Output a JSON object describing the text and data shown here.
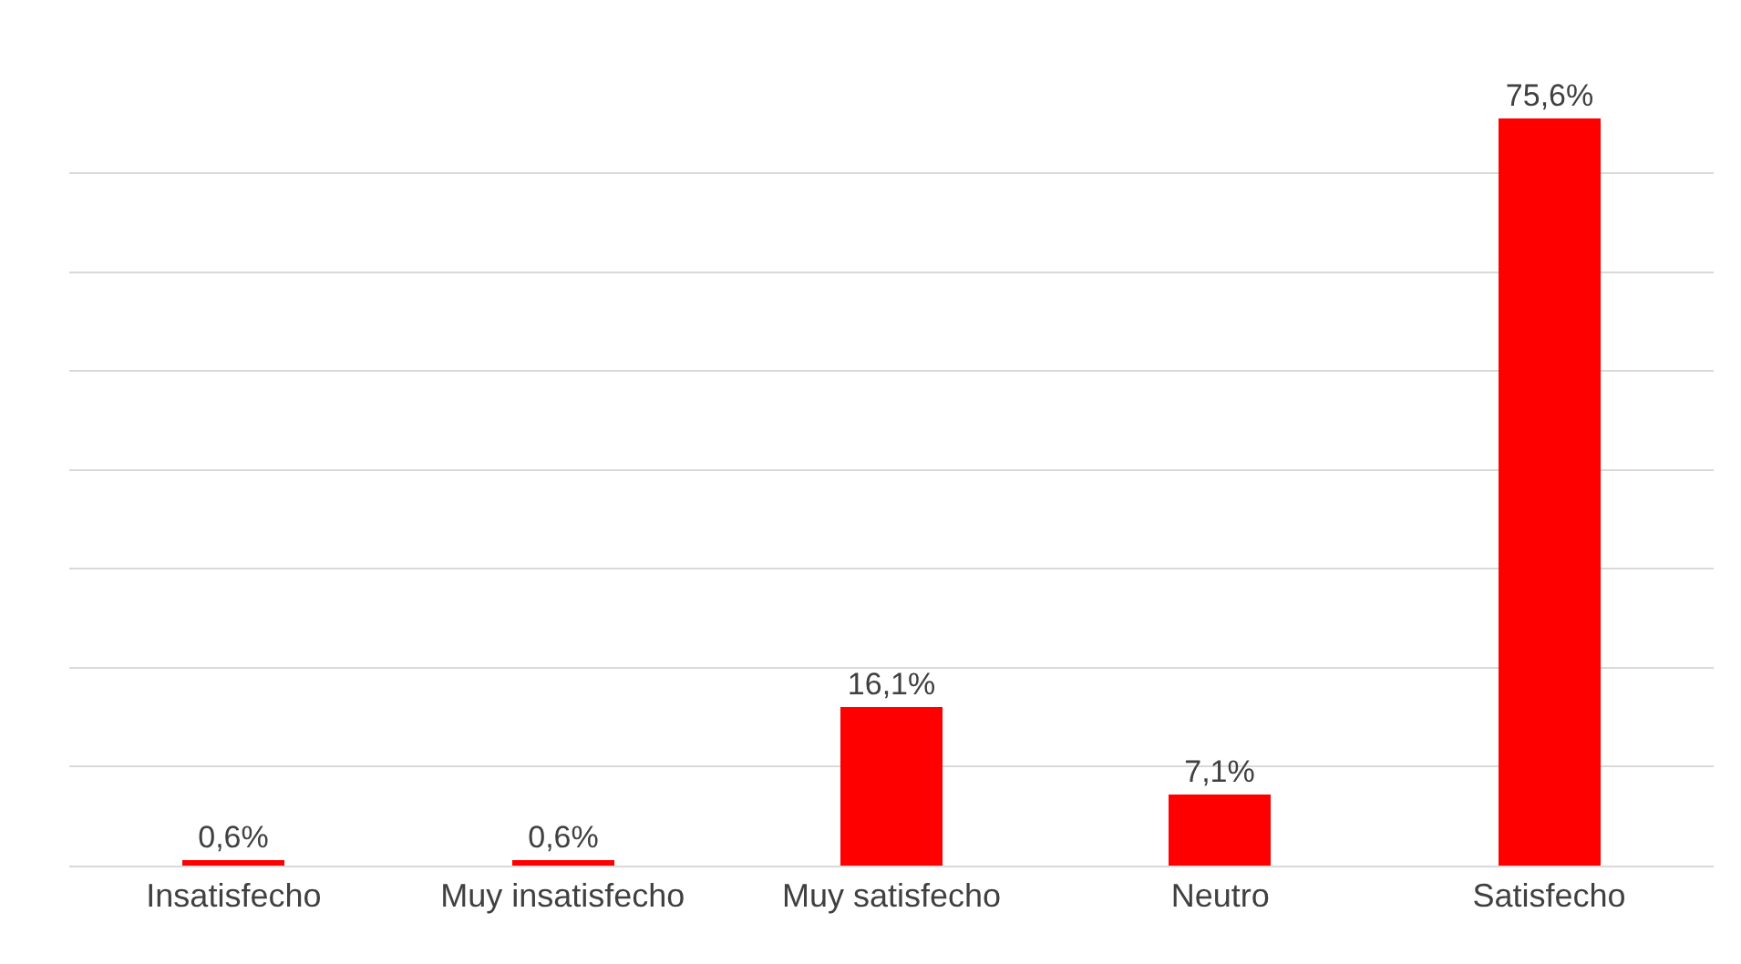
{
  "chart_data": {
    "type": "bar",
    "categories": [
      "Insatisfecho",
      "Muy insatisfecho",
      "Muy satisfecho",
      "Neutro",
      "Satisfecho"
    ],
    "values": [
      0.6,
      0.6,
      16.1,
      7.1,
      75.6
    ],
    "value_labels": [
      "0,6%",
      "0,6%",
      "16,1%",
      "7,1%",
      "75,6%"
    ],
    "color": "#ff0000",
    "grid": "y",
    "tick_labels": "x"
  }
}
